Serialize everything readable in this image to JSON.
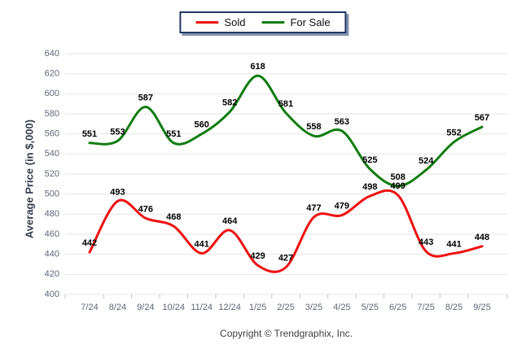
{
  "chart_data": {
    "type": "line",
    "title": "",
    "ylabel": "Average Price (in $,000)",
    "xlabel": "",
    "categories": [
      "7/24",
      "8/24",
      "9/24",
      "10/24",
      "11/24",
      "12/24",
      "1/25",
      "2/25",
      "3/25",
      "4/25",
      "5/25",
      "6/25",
      "7/25",
      "8/25",
      "9/25"
    ],
    "series": [
      {
        "name": "Sold",
        "color": "#ee1111",
        "values": [
          442,
          493,
          476,
          468,
          441,
          464,
          429,
          427,
          477,
          479,
          498,
          499,
          443,
          441,
          448
        ]
      },
      {
        "name": "For Sale",
        "color": "#107c10",
        "values": [
          551,
          553,
          587,
          551,
          560,
          582,
          618,
          581,
          558,
          563,
          525,
          508,
          524,
          552,
          567
        ]
      }
    ],
    "ylim": [
      400,
      640
    ],
    "yticks": [
      400,
      420,
      440,
      460,
      480,
      500,
      520,
      540,
      560,
      580,
      600,
      620,
      640
    ],
    "grid": true,
    "smooth": true,
    "data_labels": true,
    "legend_position": "top-center"
  },
  "footer": {
    "copyright": "Copyright © Trendgraphix, Inc."
  },
  "colors": {
    "grid": "#e6e6e6",
    "tick": "#c2c2c2",
    "axis_text": "#5d6779",
    "data_label": "#000000",
    "legend_border": "#1f3864"
  }
}
